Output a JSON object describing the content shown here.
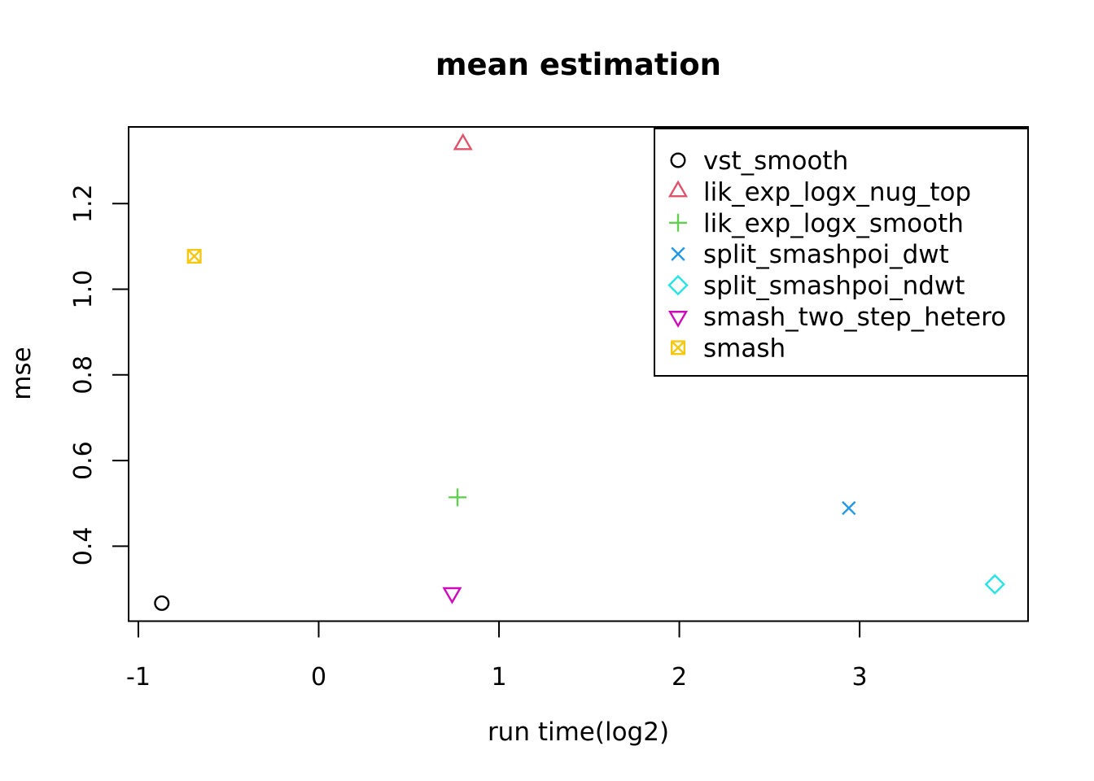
{
  "figure": {
    "background": "#ffffff",
    "foreground": "#000000"
  },
  "chart_data": {
    "type": "scatter",
    "title": "mean estimation",
    "xlabel": "run time(log2)",
    "ylabel": "mse",
    "xlim": [
      -1.054,
      3.934
    ],
    "ylim": [
      0.225,
      1.379
    ],
    "x_ticks": {
      "values": [
        -1,
        0,
        1,
        2,
        3
      ],
      "labels": [
        "-1",
        "0",
        "1",
        "2",
        "3"
      ]
    },
    "y_ticks": {
      "values": [
        0.4,
        0.6,
        0.8,
        1.0,
        1.2
      ],
      "labels": [
        "0.4",
        "0.6",
        "0.8",
        "1.0",
        "1.2"
      ]
    },
    "grid": false,
    "legend": {
      "position": "top-right",
      "border": true
    },
    "series": [
      {
        "name": "vst_smooth",
        "marker": "circle",
        "color": "#000000",
        "points": [
          {
            "x": -0.87,
            "y": 0.267
          }
        ]
      },
      {
        "name": "lik_exp_logx_nug_top",
        "marker": "triangle-up",
        "color": "#DF536B",
        "points": [
          {
            "x": 0.8,
            "y": 1.338
          }
        ]
      },
      {
        "name": "lik_exp_logx_smooth",
        "marker": "plus",
        "color": "#61D04F",
        "points": [
          {
            "x": 0.77,
            "y": 0.514
          }
        ]
      },
      {
        "name": "split_smashpoi_dwt",
        "marker": "x",
        "color": "#2297E6",
        "points": [
          {
            "x": 2.94,
            "y": 0.489
          }
        ]
      },
      {
        "name": "split_smashpoi_ndwt",
        "marker": "diamond",
        "color": "#28E2E5",
        "points": [
          {
            "x": 3.75,
            "y": 0.311
          }
        ]
      },
      {
        "name": "smash_two_step_hetero",
        "marker": "triangle-down",
        "color": "#CD0BBC",
        "points": [
          {
            "x": 0.74,
            "y": 0.291
          }
        ]
      },
      {
        "name": "smash",
        "marker": "square-x",
        "color": "#F5C710",
        "points": [
          {
            "x": -0.69,
            "y": 1.077
          }
        ]
      }
    ]
  }
}
